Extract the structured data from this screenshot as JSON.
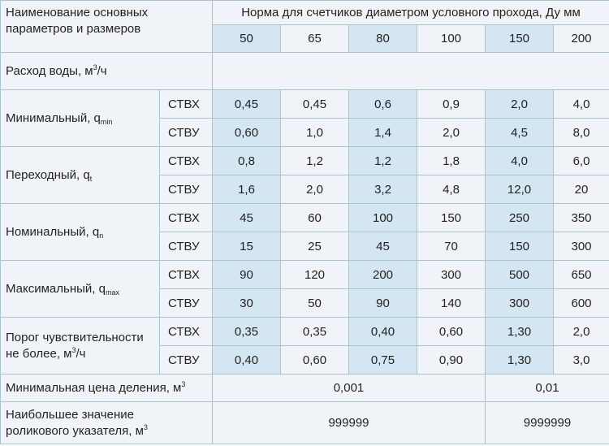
{
  "header": {
    "title_line1": "Наименование основных",
    "title_line2": "параметров и размеров",
    "norm_title": "Норма для счетчиков диаметром условного прохода, Ду мм",
    "diameters": [
      "50",
      "65",
      "80",
      "100",
      "150",
      "200"
    ]
  },
  "flow_section": {
    "label": "Расход воды, м",
    "label_sup": "3",
    "label_tail": "/ч"
  },
  "groups": [
    {
      "label": "Минимальный, q",
      "sub": "min",
      "rows": [
        {
          "type": "СТВХ",
          "values": [
            "0,45",
            "0,45",
            "0,6",
            "0,9",
            "2,0",
            "4,0"
          ]
        },
        {
          "type": "СТВУ",
          "values": [
            "0,60",
            "1,0",
            "1,4",
            "2,0",
            "4,5",
            "8,0"
          ]
        }
      ]
    },
    {
      "label": "Переходный, q",
      "sub": "t",
      "rows": [
        {
          "type": "СТВХ",
          "values": [
            "0,8",
            "1,2",
            "1,2",
            "1,8",
            "4,0",
            "6,0"
          ]
        },
        {
          "type": "СТВУ",
          "values": [
            "1,6",
            "2,0",
            "3,2",
            "4,8",
            "12,0",
            "20"
          ]
        }
      ]
    },
    {
      "label": "Номинальный, q",
      "sub": "n",
      "rows": [
        {
          "type": "СТВХ",
          "values": [
            "45",
            "60",
            "100",
            "150",
            "250",
            "350"
          ]
        },
        {
          "type": "СТВУ",
          "values": [
            "15",
            "25",
            "45",
            "70",
            "150",
            "300"
          ]
        }
      ]
    },
    {
      "label": "Максимальный, q",
      "sub": "max",
      "rows": [
        {
          "type": "СТВХ",
          "values": [
            "90",
            "120",
            "200",
            "300",
            "500",
            "650"
          ]
        },
        {
          "type": "СТВУ",
          "values": [
            "30",
            "50",
            "90",
            "140",
            "300",
            "600"
          ]
        }
      ]
    },
    {
      "label": "Порог чувствительности",
      "label2": "не более, м",
      "sup": "3",
      "tail": "/ч",
      "rows": [
        {
          "type": "СТВХ",
          "values": [
            "0,35",
            "0,35",
            "0,40",
            "0,60",
            "1,30",
            "2,0"
          ]
        },
        {
          "type": "СТВУ",
          "values": [
            "0,40",
            "0,60",
            "0,75",
            "0,90",
            "1,30",
            "3,0"
          ]
        }
      ]
    }
  ],
  "min_division": {
    "label": "Минимальная цена деления, м",
    "sup": "3",
    "value_small": "0,001",
    "value_large": "0,01"
  },
  "max_roller": {
    "label_line1": "Наибольшее значение",
    "label_line2": "роликового указателя, м",
    "sup": "3",
    "value_small": "999999",
    "value_large": "9999999"
  },
  "colors": {
    "cell_background": "#f0f4f8",
    "highlight_column": "#d3e6f2",
    "border": "#aac3d1",
    "text": "#231f20"
  }
}
